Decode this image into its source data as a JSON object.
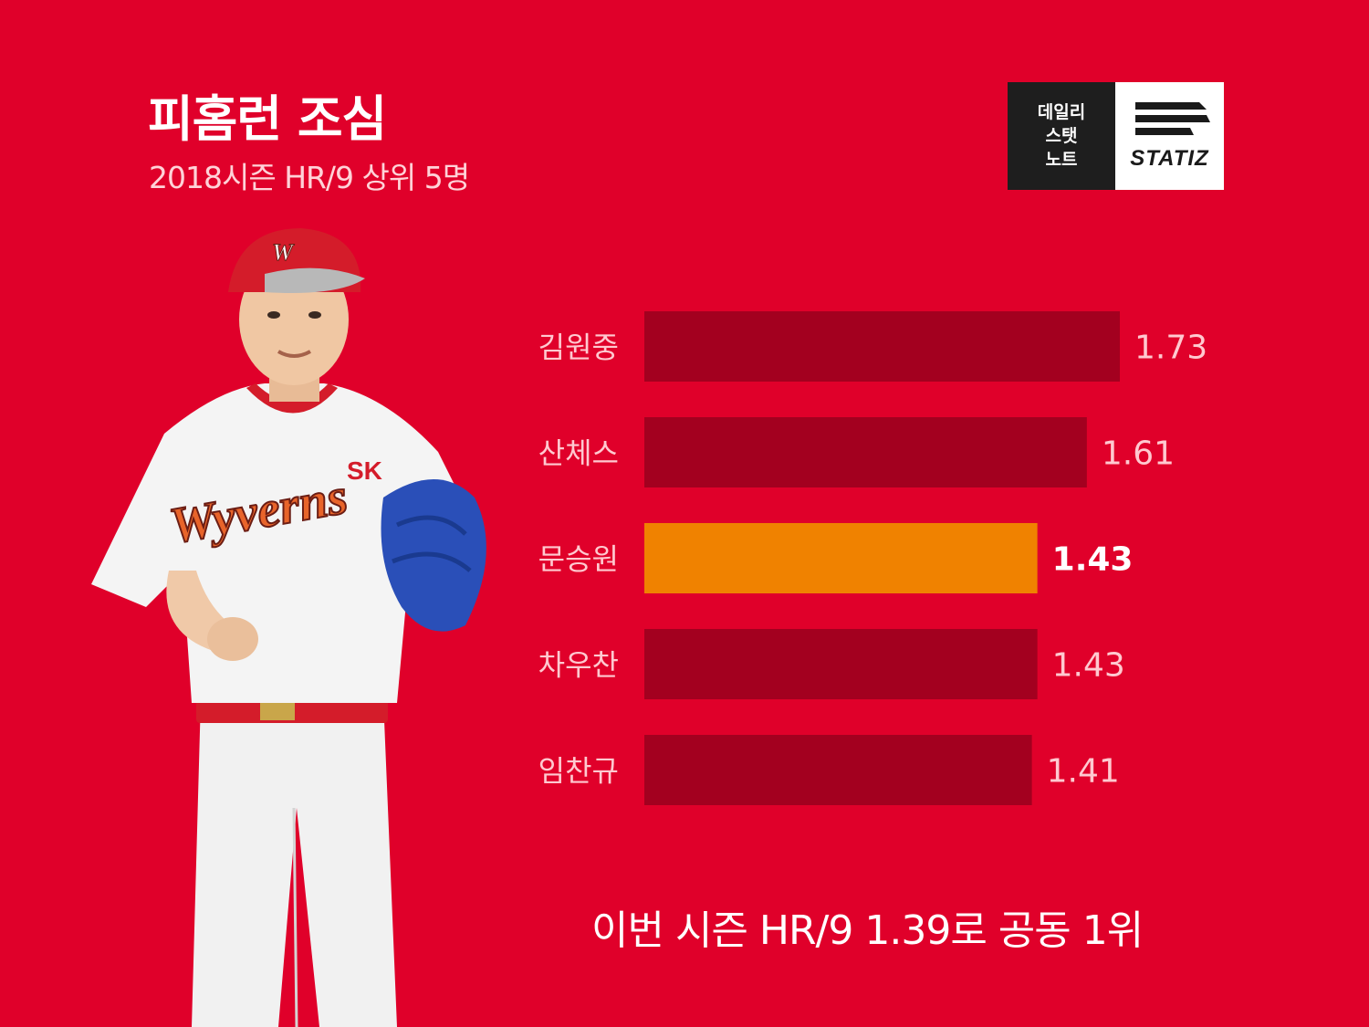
{
  "header": {
    "title": "피홈런 조심",
    "subtitle": "2018시즌 HR/9 상위 5명"
  },
  "logo": {
    "line1": "데일리",
    "line2": "스탯",
    "line3": "노트",
    "brand": "STATIZ"
  },
  "player_photo": {
    "cap_logo": "W",
    "chest_logo": "SK",
    "jersey_text": "Wyverns"
  },
  "chart_data": {
    "type": "bar",
    "orientation": "horizontal",
    "categories": [
      "김원중",
      "산체스",
      "문승원",
      "차우찬",
      "임찬규"
    ],
    "values": [
      1.73,
      1.61,
      1.43,
      1.43,
      1.41
    ],
    "value_labels": [
      "1.73",
      "1.61",
      "1.43",
      "1.43",
      "1.41"
    ],
    "highlight_index": 2,
    "xlim": [
      0,
      1.73
    ],
    "grid": false,
    "colors": {
      "bar": "#a3001f",
      "highlight": "#f08200",
      "label": "#ffc9d0",
      "highlight_label": "#ffffff"
    }
  },
  "footer": {
    "note": "이번 시즌 HR/9 1.39로 공동 1위"
  }
}
